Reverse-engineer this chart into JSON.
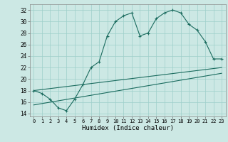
{
  "title": "",
  "xlabel": "Humidex (Indice chaleur)",
  "xlim": [
    -0.5,
    23.5
  ],
  "ylim": [
    13.5,
    33
  ],
  "yticks": [
    14,
    16,
    18,
    20,
    22,
    24,
    26,
    28,
    30,
    32
  ],
  "xticks": [
    0,
    1,
    2,
    3,
    4,
    5,
    6,
    7,
    8,
    9,
    10,
    11,
    12,
    13,
    14,
    15,
    16,
    17,
    18,
    19,
    20,
    21,
    22,
    23
  ],
  "background_color": "#cce8e4",
  "grid_color": "#9ecfca",
  "line_color": "#1a6b5e",
  "line1_x": [
    0,
    1,
    2,
    3,
    4,
    5,
    6,
    7,
    8,
    9,
    10,
    11,
    12,
    13,
    14,
    15,
    16,
    17,
    18,
    19,
    20,
    21,
    22,
    23
  ],
  "line1_y": [
    18,
    17.5,
    16.5,
    15,
    14.5,
    16.5,
    19,
    22,
    23,
    27.5,
    30,
    31,
    31.5,
    27.5,
    28,
    30.5,
    31.5,
    32,
    31.5,
    29.5,
    28.5,
    26.5,
    23.5,
    23.5
  ],
  "line2_x": [
    0,
    23
  ],
  "line2_y": [
    18,
    22
  ],
  "line3_x": [
    0,
    23
  ],
  "line3_y": [
    15.5,
    21
  ],
  "marker": "+"
}
